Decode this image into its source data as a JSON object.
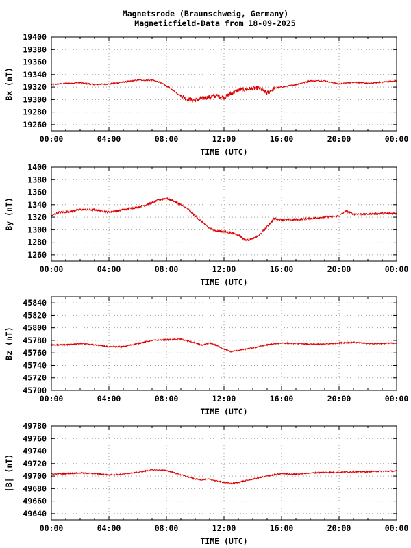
{
  "header": {
    "title_line1": "Magnetsrode (Braunschweig, Germany)",
    "title_line2": "Magneticfield-Data from 18-09-2025"
  },
  "colors": {
    "trace": "#dd0000",
    "grid": "#a0a0a0",
    "axis": "#000000"
  },
  "chart_data": [
    {
      "type": "line",
      "ylabel": "Bx (nT)",
      "xlabel": "TIME (UTC)",
      "xticks": [
        "00:00",
        "04:00",
        "08:00",
        "12:00",
        "16:00",
        "20:00",
        "00:00"
      ],
      "x_hours": [
        0,
        24
      ],
      "ylim": [
        19250,
        19400
      ],
      "yticks": [
        19260,
        19280,
        19300,
        19320,
        19340,
        19360,
        19380,
        19400
      ],
      "grid": true,
      "series": [
        {
          "x": [
            0,
            1,
            2,
            3,
            4,
            5,
            6,
            7,
            7.5,
            8,
            8.5,
            9,
            9.5,
            10,
            10.5,
            11,
            11.5,
            12,
            12.5,
            13,
            13.5,
            14,
            14.5,
            15,
            15.5,
            16,
            17,
            18,
            19,
            20,
            21,
            22,
            23,
            24
          ],
          "values": [
            19324,
            19326,
            19327,
            19324,
            19325,
            19328,
            19331,
            19331,
            19328,
            19322,
            19314,
            19306,
            19300,
            19299,
            19302,
            19304,
            19306,
            19303,
            19310,
            19315,
            19316,
            19318,
            19318,
            19310,
            19318,
            19320,
            19324,
            19330,
            19330,
            19325,
            19328,
            19326,
            19328,
            19330
          ]
        }
      ]
    },
    {
      "type": "line",
      "ylabel": "By (nT)",
      "xlabel": "TIME (UTC)",
      "xticks": [
        "00:00",
        "04:00",
        "08:00",
        "12:00",
        "16:00",
        "20:00",
        "00:00"
      ],
      "x_hours": [
        0,
        24
      ],
      "ylim": [
        1250,
        1400
      ],
      "yticks": [
        1260,
        1280,
        1300,
        1320,
        1340,
        1360,
        1380,
        1400
      ],
      "grid": true,
      "series": [
        {
          "x": [
            0,
            0.5,
            1,
            2,
            3,
            4,
            5,
            6,
            7,
            7.5,
            8,
            8.5,
            9,
            9.5,
            10,
            10.5,
            11,
            11.5,
            12,
            12.5,
            13,
            13.5,
            14,
            14.5,
            15,
            15.5,
            16,
            17,
            18,
            19,
            20,
            20.5,
            21,
            22,
            23,
            24
          ],
          "values": [
            1322,
            1328,
            1328,
            1332,
            1332,
            1328,
            1332,
            1336,
            1343,
            1348,
            1350,
            1346,
            1340,
            1333,
            1322,
            1312,
            1302,
            1298,
            1297,
            1295,
            1292,
            1283,
            1285,
            1292,
            1305,
            1318,
            1316,
            1316,
            1318,
            1320,
            1322,
            1330,
            1325,
            1325,
            1326,
            1326
          ]
        }
      ]
    },
    {
      "type": "line",
      "ylabel": "Bz (nT)",
      "xlabel": "TIME (UTC)",
      "xticks": [
        "00:00",
        "04:00",
        "08:00",
        "12:00",
        "16:00",
        "20:00",
        "00:00"
      ],
      "x_hours": [
        0,
        24
      ],
      "ylim": [
        45700,
        45850
      ],
      "yticks": [
        45700,
        45720,
        45740,
        45760,
        45780,
        45800,
        45820,
        45840
      ],
      "grid": true,
      "series": [
        {
          "x": [
            0,
            1,
            2,
            3,
            4,
            5,
            6,
            7,
            8,
            9,
            10,
            10.5,
            11,
            11.5,
            12,
            12.5,
            13,
            14,
            15,
            16,
            17,
            18,
            19,
            20,
            21,
            22,
            23,
            24
          ],
          "values": [
            45773,
            45773,
            45775,
            45773,
            45770,
            45770,
            45775,
            45780,
            45781,
            45782,
            45776,
            45772,
            45776,
            45772,
            45766,
            45762,
            45764,
            45768,
            45773,
            45776,
            45775,
            45774,
            45774,
            45776,
            45777,
            45775,
            45775,
            45776
          ]
        }
      ]
    },
    {
      "type": "line",
      "ylabel": "|B| (nT)",
      "xlabel": "TIME (UTC)",
      "xticks": [
        "00:00",
        "04:00",
        "08:00",
        "12:00",
        "16:00",
        "20:00",
        "00:00"
      ],
      "x_hours": [
        0,
        24
      ],
      "ylim": [
        49630,
        49780
      ],
      "yticks": [
        49640,
        49660,
        49680,
        49700,
        49720,
        49740,
        49760,
        49780
      ],
      "grid": true,
      "series": [
        {
          "x": [
            0,
            1,
            2,
            3,
            4,
            5,
            6,
            7,
            8,
            9,
            10,
            10.5,
            11,
            11.5,
            12,
            12.5,
            13,
            14,
            15,
            16,
            17,
            18,
            19,
            20,
            21,
            22,
            23,
            24
          ],
          "values": [
            49703,
            49704,
            49705,
            49704,
            49702,
            49703,
            49706,
            49710,
            49709,
            49702,
            49695,
            49694,
            49695,
            49692,
            49690,
            49688,
            49690,
            49695,
            49700,
            49704,
            49703,
            49705,
            49706,
            49706,
            49707,
            49707,
            49708,
            49708
          ]
        }
      ]
    }
  ]
}
